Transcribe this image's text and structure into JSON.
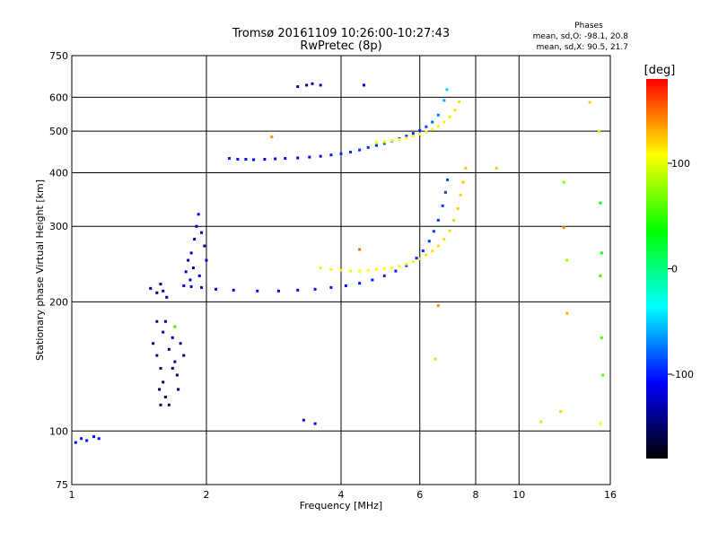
{
  "chart_data": {
    "type": "scatter",
    "title": "Tromsø 20161109 10:26:00-10:27:43",
    "subtitle": "RwPretec (8p)",
    "xlabel": "Frequency [MHz]",
    "ylabel": "Stationary phase Virtual Height [km]",
    "x_scale": "log",
    "y_scale": "log",
    "xlim": [
      1,
      16
    ],
    "ylim": [
      75,
      750
    ],
    "x_ticks": [
      1,
      2,
      4,
      6,
      8,
      10,
      16
    ],
    "y_ticks": [
      75,
      100,
      200,
      300,
      400,
      500,
      600,
      750
    ],
    "phases": {
      "title": "Phases",
      "o_line": "mean, sd,O: -98.1, 20.8",
      "x_line": "mean, sd,X:  90.5, 21.7"
    },
    "colorbar": {
      "label": "[deg]",
      "range": [
        -180,
        180
      ],
      "ticks": [
        100,
        0,
        -100
      ],
      "colors": [
        "#ff0000",
        "#ffff00",
        "#00ff00",
        "#00ffff",
        "#0000ff",
        "#000000"
      ]
    },
    "series": [
      {
        "values": [
          [
            2.25,
            432,
            -100
          ],
          [
            2.35,
            430,
            -102
          ],
          [
            2.45,
            430,
            -105
          ],
          [
            2.55,
            429,
            -110
          ],
          [
            2.7,
            430,
            -108
          ],
          [
            2.85,
            431,
            -106
          ],
          [
            3.0,
            432,
            -104
          ],
          [
            3.2,
            433,
            -110
          ],
          [
            3.4,
            435,
            -112
          ],
          [
            3.6,
            437,
            -105
          ],
          [
            3.8,
            440,
            -100
          ],
          [
            4.0,
            443,
            -98
          ],
          [
            4.2,
            447,
            -96
          ],
          [
            4.4,
            452,
            -95
          ],
          [
            4.6,
            458,
            -94
          ],
          [
            4.8,
            463,
            -93
          ],
          [
            5.0,
            468,
            -92
          ],
          [
            5.2,
            474,
            -92
          ],
          [
            5.4,
            480,
            -93
          ],
          [
            5.6,
            487,
            -94
          ],
          [
            5.8,
            494,
            -95
          ],
          [
            6.0,
            502,
            -96
          ],
          [
            6.2,
            512,
            -90
          ],
          [
            6.4,
            525,
            -80
          ],
          [
            6.6,
            545,
            -70
          ],
          [
            6.8,
            590,
            -60
          ],
          [
            6.9,
            625,
            -50
          ],
          [
            1.78,
            218,
            -110
          ],
          [
            1.85,
            217,
            -112
          ],
          [
            1.95,
            216,
            -115
          ],
          [
            2.1,
            214,
            -113
          ],
          [
            2.3,
            213,
            -112
          ],
          [
            2.6,
            212,
            -110
          ],
          [
            2.9,
            212,
            -108
          ],
          [
            3.2,
            213,
            -106
          ],
          [
            3.5,
            214,
            -105
          ],
          [
            3.8,
            216,
            -104
          ],
          [
            4.1,
            218,
            -103
          ],
          [
            4.4,
            221,
            -102
          ],
          [
            4.7,
            225,
            -101
          ],
          [
            5.0,
            230,
            -100
          ],
          [
            5.3,
            236,
            -99
          ],
          [
            5.6,
            243,
            -98
          ],
          [
            5.9,
            253,
            -97
          ],
          [
            6.1,
            263,
            -95
          ],
          [
            6.3,
            277,
            -94
          ],
          [
            6.45,
            292,
            -93
          ],
          [
            6.6,
            310,
            -92
          ],
          [
            6.75,
            335,
            -91
          ],
          [
            6.85,
            360,
            -90
          ],
          [
            6.92,
            385,
            -90
          ],
          [
            1.5,
            215,
            -140
          ],
          [
            1.55,
            210,
            -150
          ],
          [
            1.58,
            220,
            -135
          ],
          [
            1.6,
            212,
            -145
          ],
          [
            1.63,
            205,
            -130
          ],
          [
            1.52,
            160,
            -140
          ],
          [
            1.55,
            150,
            -145
          ],
          [
            1.58,
            140,
            -150
          ],
          [
            1.6,
            170,
            -135
          ],
          [
            1.62,
            180,
            -130
          ],
          [
            1.65,
            155,
            -142
          ],
          [
            1.68,
            165,
            -138
          ],
          [
            1.7,
            145,
            -148
          ],
          [
            1.72,
            135,
            -150
          ],
          [
            1.75,
            160,
            -140
          ],
          [
            1.78,
            150,
            -145
          ],
          [
            1.57,
            125,
            -155
          ],
          [
            1.6,
            130,
            -150
          ],
          [
            1.62,
            120,
            -152
          ],
          [
            1.65,
            115,
            -148
          ],
          [
            1.68,
            140,
            -146
          ],
          [
            1.7,
            175,
            -134
          ],
          [
            1.55,
            180,
            -130
          ],
          [
            1.58,
            115,
            -155
          ],
          [
            1.73,
            125,
            -150
          ],
          [
            1.82,
            250,
            -130
          ],
          [
            1.85,
            260,
            -128
          ],
          [
            1.88,
            280,
            -125
          ],
          [
            1.9,
            300,
            -120
          ],
          [
            1.92,
            320,
            -118
          ],
          [
            1.95,
            290,
            -124
          ],
          [
            1.98,
            270,
            -126
          ],
          [
            2.0,
            250,
            -122
          ],
          [
            1.93,
            230,
            -120
          ],
          [
            1.87,
            240,
            -126
          ],
          [
            1.8,
            235,
            -122
          ],
          [
            1.84,
            225,
            -130
          ],
          [
            1.02,
            94,
            -110
          ],
          [
            1.05,
            96,
            -105
          ],
          [
            1.08,
            95,
            -108
          ],
          [
            1.12,
            97,
            -106
          ],
          [
            1.15,
            96,
            -104
          ],
          [
            3.2,
            635,
            -120
          ],
          [
            3.35,
            640,
            -140
          ],
          [
            3.45,
            645,
            -135
          ],
          [
            3.6,
            640,
            -125
          ],
          [
            4.5,
            640,
            -115
          ],
          [
            3.3,
            106,
            -115
          ],
          [
            3.5,
            104,
            -118
          ]
        ]
      },
      {
        "values": [
          [
            4.8,
            470,
            100
          ],
          [
            5.0,
            472,
            102
          ],
          [
            5.2,
            475,
            104
          ],
          [
            5.4,
            478,
            105
          ],
          [
            5.6,
            482,
            106
          ],
          [
            5.8,
            487,
            107
          ],
          [
            6.0,
            492,
            108
          ],
          [
            6.2,
            498,
            109
          ],
          [
            6.4,
            505,
            110
          ],
          [
            6.6,
            514,
            111
          ],
          [
            6.8,
            525,
            112
          ],
          [
            7.0,
            540,
            113
          ],
          [
            7.2,
            560,
            115
          ],
          [
            7.35,
            585,
            118
          ],
          [
            3.6,
            240,
            100
          ],
          [
            3.8,
            238,
            102
          ],
          [
            4.0,
            237,
            104
          ],
          [
            4.2,
            236,
            105
          ],
          [
            4.4,
            236,
            106
          ],
          [
            4.6,
            237,
            107
          ],
          [
            4.8,
            238,
            108
          ],
          [
            5.0,
            239,
            109
          ],
          [
            5.2,
            240,
            110
          ],
          [
            5.4,
            242,
            111
          ],
          [
            5.6,
            245,
            112
          ],
          [
            5.8,
            248,
            113
          ],
          [
            6.0,
            252,
            114
          ],
          [
            6.2,
            257,
            115
          ],
          [
            6.4,
            263,
            116
          ],
          [
            6.6,
            270,
            117
          ],
          [
            6.8,
            280,
            118
          ],
          [
            7.0,
            293,
            119
          ],
          [
            7.15,
            310,
            120
          ],
          [
            7.3,
            330,
            121
          ],
          [
            7.4,
            355,
            122
          ],
          [
            7.5,
            380,
            124
          ],
          [
            7.6,
            410,
            126
          ],
          [
            2.8,
            485,
            140
          ],
          [
            4.4,
            265,
            150
          ],
          [
            6.6,
            196,
            140
          ],
          [
            6.5,
            147,
            120
          ],
          [
            8.9,
            410,
            125
          ],
          [
            12.6,
            298,
            140
          ],
          [
            12.8,
            188,
            130
          ],
          [
            12.4,
            111,
            120
          ],
          [
            11.2,
            105,
            118
          ],
          [
            14.4,
            584,
            120
          ],
          [
            15.1,
            500,
            90
          ],
          [
            15.2,
            340,
            30
          ],
          [
            15.3,
            260,
            40
          ],
          [
            15.2,
            230,
            50
          ],
          [
            15.3,
            165,
            55
          ],
          [
            15.4,
            135,
            60
          ],
          [
            15.2,
            104,
            110
          ],
          [
            12.6,
            380,
            70
          ],
          [
            12.8,
            250,
            80
          ],
          [
            1.7,
            175,
            60
          ]
        ]
      }
    ]
  }
}
